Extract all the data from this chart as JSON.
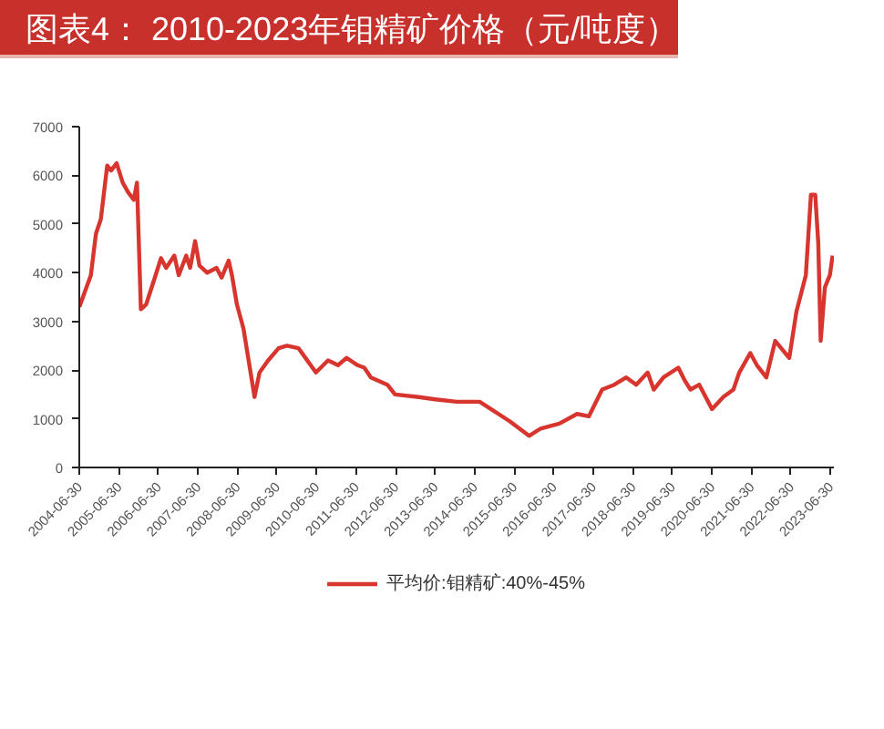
{
  "chart_data": {
    "type": "line",
    "title": "图表4： 2010-2023年钼精矿价格（元/吨度）",
    "x": [
      "2004-07-01",
      "2004-10-15",
      "2004-12-01",
      "2005-01-15",
      "2005-03-15",
      "2005-04-20",
      "2005-06-10",
      "2005-08-05",
      "2005-09-25",
      "2005-11-15",
      "2005-12-15",
      "2006-01-20",
      "2006-03-10",
      "2006-06-05",
      "2006-07-25",
      "2006-09-10",
      "2006-11-25",
      "2007-01-05",
      "2007-03-15",
      "2007-04-20",
      "2007-06-05",
      "2007-07-15",
      "2007-09-25",
      "2007-12-20",
      "2008-02-05",
      "2008-04-10",
      "2008-05-10",
      "2008-06-25",
      "2008-08-25",
      "2008-12-05",
      "2009-01-20",
      "2009-04-10",
      "2009-07-15",
      "2009-10-01",
      "2010-01-15",
      "2010-06-25",
      "2010-10-15",
      "2011-01-15",
      "2011-04-05",
      "2011-07-15",
      "2011-09-15",
      "2011-11-15",
      "2012-04-15",
      "2012-06-25",
      "2013-01-15",
      "2013-07-01",
      "2014-01-15",
      "2014-08-15",
      "2015-05-20",
      "2015-11-15",
      "2016-03-01",
      "2016-08-20",
      "2017-02-01",
      "2017-05-20",
      "2017-09-20",
      "2018-01-10",
      "2018-05-01",
      "2018-08-01",
      "2018-11-15",
      "2019-01-10",
      "2019-04-10",
      "2019-08-25",
      "2019-10-20",
      "2019-12-15",
      "2020-03-05",
      "2020-07-01",
      "2020-10-15",
      "2021-01-15",
      "2021-03-10",
      "2021-06-20",
      "2021-08-20",
      "2021-11-15",
      "2022-02-05",
      "2022-06-15",
      "2022-08-20",
      "2022-11-15",
      "2023-01-01",
      "2023-02-10",
      "2023-03-10",
      "2023-04-01",
      "2023-05-10",
      "2023-06-25",
      "2023-07-20"
    ],
    "series": [
      {
        "name": "平均价:钼精矿:40%-45%",
        "color": "#d7352e",
        "values": [
          3300,
          3950,
          4800,
          5100,
          6200,
          6100,
          6250,
          5850,
          5650,
          5500,
          5850,
          3250,
          3350,
          3950,
          4300,
          4100,
          4350,
          3950,
          4350,
          4100,
          4650,
          4150,
          4000,
          4100,
          3900,
          4250,
          3950,
          3350,
          2850,
          1450,
          1950,
          2200,
          2450,
          2500,
          2450,
          1950,
          2200,
          2100,
          2250,
          2100,
          2050,
          1850,
          1700,
          1500,
          1450,
          1400,
          1350,
          1350,
          950,
          650,
          800,
          900,
          1100,
          1050,
          1600,
          1700,
          1850,
          1700,
          1950,
          1600,
          1850,
          2050,
          1800,
          1600,
          1700,
          1200,
          1450,
          1600,
          1950,
          2350,
          2100,
          1850,
          2600,
          2250,
          3200,
          3950,
          5600,
          5600,
          4600,
          2600,
          3700,
          3950,
          4350
        ]
      }
    ],
    "xlim": [
      "2004-06-30",
      "2023-08-01"
    ],
    "xticks": [
      "2004-06-30",
      "2005-06-30",
      "2006-06-30",
      "2007-06-30",
      "2008-06-30",
      "2009-06-30",
      "2010-06-30",
      "2011-06-30",
      "2012-06-30",
      "2013-06-30",
      "2014-06-30",
      "2015-06-30",
      "2016-06-30",
      "2017-06-30",
      "2018-06-30",
      "2019-06-30",
      "2020-06-30",
      "2021-06-30",
      "2022-06-30",
      "2023-06-30"
    ],
    "ylim": [
      0,
      7000
    ],
    "yticks": [
      0,
      1000,
      2000,
      3000,
      4000,
      5000,
      6000,
      7000
    ],
    "grid": false,
    "legend": "bottom",
    "line_style": "solid"
  }
}
